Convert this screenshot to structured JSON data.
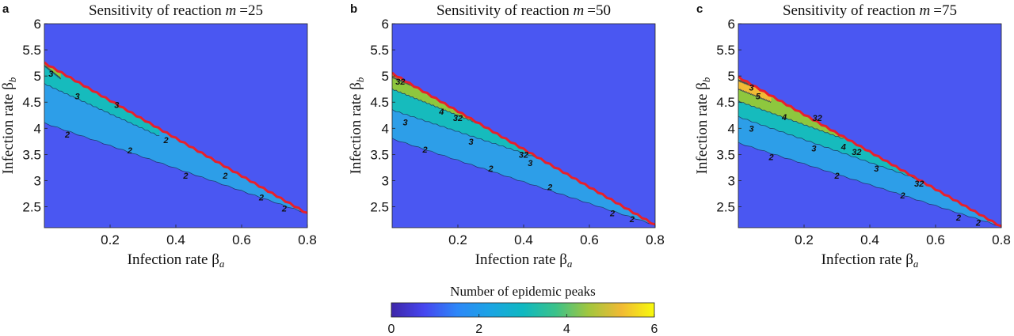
{
  "chart_data": [
    {
      "panel_letter": "a",
      "type": "heatmap",
      "title": "Sensitivity of reaction m =25",
      "title_text": "Sensitivity of reaction ",
      "title_var": "m",
      "title_value": "=25",
      "xlabel": "Infection rate β",
      "xlabel_text": "Infection rate β",
      "xlabel_sub": "a",
      "ylabel": "Infection rate β",
      "ylabel_text": "Infection rate β",
      "ylabel_sub": "b",
      "xlim": [
        0.0,
        0.8
      ],
      "ylim": [
        2.1,
        6.0
      ],
      "xticks": [
        "0.2",
        "0.4",
        "0.6",
        "0.8"
      ],
      "xtick_values": [
        0.2,
        0.4,
        0.6,
        0.8
      ],
      "yticks": [
        "2.5",
        "3",
        "3.5",
        "4",
        "4.5",
        "5",
        "5.5",
        "6"
      ],
      "ytick_values": [
        2.5,
        3.0,
        3.5,
        4.0,
        4.5,
        5.0,
        5.5,
        6.0
      ],
      "boundary_line": [
        [
          0.0,
          5.25
        ],
        [
          0.8,
          2.37
        ]
      ],
      "region_colors": {
        "1": "#4a57f2",
        "2": "#2d9ee8",
        "3": "#16bbbd",
        "4": "#8ec73e",
        "5": "#f1ba34",
        "6": "#f8f51d"
      },
      "contour_lines": [
        {
          "level": 2,
          "points": [
            [
              0.0,
              4.1
            ],
            [
              0.8,
              2.37
            ]
          ]
        },
        {
          "level": 3,
          "points": [
            [
              0.0,
              4.85
            ],
            [
              0.35,
              3.85
            ]
          ]
        },
        {
          "level": 4,
          "points": [
            [
              0.0,
              5.2
            ],
            [
              0.05,
              4.95
            ]
          ]
        }
      ],
      "contour_labels": [
        {
          "text": "3",
          "x": 0.02,
          "y": 5.05
        },
        {
          "text": "3",
          "x": 0.1,
          "y": 4.62
        },
        {
          "text": "3",
          "x": 0.22,
          "y": 4.45
        },
        {
          "text": "2",
          "x": 0.07,
          "y": 3.88
        },
        {
          "text": "2",
          "x": 0.26,
          "y": 3.58
        },
        {
          "text": "2",
          "x": 0.37,
          "y": 3.78
        },
        {
          "text": "2",
          "x": 0.43,
          "y": 3.1
        },
        {
          "text": "2",
          "x": 0.55,
          "y": 3.1
        },
        {
          "text": "2",
          "x": 0.66,
          "y": 2.68
        },
        {
          "text": "2",
          "x": 0.73,
          "y": 2.47
        }
      ]
    },
    {
      "panel_letter": "b",
      "type": "heatmap",
      "title": "Sensitivity of reaction m =50",
      "title_text": "Sensitivity of reaction ",
      "title_var": "m",
      "title_value": "=50",
      "xlabel": "Infection rate β",
      "xlabel_text": "Infection rate β",
      "xlabel_sub": "a",
      "ylabel": "Infection rate β",
      "ylabel_text": "Infection rate β",
      "ylabel_sub": "b",
      "xlim": [
        0.0,
        0.8
      ],
      "ylim": [
        2.1,
        6.0
      ],
      "xticks": [
        "0.2",
        "0.4",
        "0.6",
        "0.8"
      ],
      "xtick_values": [
        0.2,
        0.4,
        0.6,
        0.8
      ],
      "yticks": [
        "2.5",
        "3",
        "3.5",
        "4",
        "4.5",
        "5",
        "5.5",
        "6"
      ],
      "ytick_values": [
        2.5,
        3.0,
        3.5,
        4.0,
        4.5,
        5.0,
        5.5,
        6.0
      ],
      "boundary_line": [
        [
          0.0,
          5.05
        ],
        [
          0.8,
          2.15
        ]
      ],
      "region_colors": {
        "1": "#4a57f2",
        "2": "#2d9ee8",
        "3": "#16bbbd",
        "4": "#8ec73e",
        "5": "#f1ba34",
        "6": "#f8f51d"
      },
      "contour_lines": [
        {
          "level": 2,
          "points": [
            [
              0.0,
              3.8
            ],
            [
              0.8,
              2.15
            ]
          ]
        },
        {
          "level": 3,
          "points": [
            [
              0.0,
              4.35
            ],
            [
              0.45,
              3.42
            ]
          ]
        },
        {
          "level": 4,
          "points": [
            [
              0.0,
              4.75
            ],
            [
              0.25,
              4.12
            ]
          ]
        },
        {
          "level": 5,
          "points": [
            [
              0.0,
              4.98
            ],
            [
              0.06,
              4.82
            ]
          ]
        }
      ],
      "contour_labels": [
        {
          "text": "32",
          "x": 0.025,
          "y": 4.9
        },
        {
          "text": "4",
          "x": 0.15,
          "y": 4.32
        },
        {
          "text": "32",
          "x": 0.2,
          "y": 4.2
        },
        {
          "text": "3",
          "x": 0.04,
          "y": 4.12
        },
        {
          "text": "3",
          "x": 0.24,
          "y": 3.75
        },
        {
          "text": "32",
          "x": 0.4,
          "y": 3.5
        },
        {
          "text": "3",
          "x": 0.42,
          "y": 3.34
        },
        {
          "text": "2",
          "x": 0.1,
          "y": 3.6
        },
        {
          "text": "2",
          "x": 0.3,
          "y": 3.23
        },
        {
          "text": "2",
          "x": 0.48,
          "y": 2.88
        },
        {
          "text": "2",
          "x": 0.67,
          "y": 2.38
        },
        {
          "text": "2",
          "x": 0.73,
          "y": 2.27
        }
      ]
    },
    {
      "panel_letter": "c",
      "type": "heatmap",
      "title": "Sensitivity of reaction m =75",
      "title_text": "Sensitivity of reaction ",
      "title_var": "m",
      "title_value": "=75",
      "xlabel": "Infection rate β",
      "xlabel_text": "Infection rate β",
      "xlabel_sub": "a",
      "ylabel": "Infection rate β",
      "ylabel_text": "Infection rate β",
      "ylabel_sub": "b",
      "xlim": [
        0.0,
        0.8
      ],
      "ylim": [
        2.1,
        6.0
      ],
      "xticks": [
        "0.2",
        "0.4",
        "0.6",
        "0.8"
      ],
      "xtick_values": [
        0.2,
        0.4,
        0.6,
        0.8
      ],
      "yticks": [
        "2.5",
        "3",
        "3.5",
        "4",
        "4.5",
        "5",
        "5.5",
        "6"
      ],
      "ytick_values": [
        2.5,
        3.0,
        3.5,
        4.0,
        4.5,
        5.0,
        5.5,
        6.0
      ],
      "boundary_line": [
        [
          0.0,
          4.98
        ],
        [
          0.8,
          2.12
        ]
      ],
      "region_colors": {
        "1": "#4a57f2",
        "2": "#2d9ee8",
        "3": "#16bbbd",
        "4": "#8ec73e",
        "5": "#f1ba34",
        "6": "#f8f51d"
      },
      "contour_lines": [
        {
          "level": 2,
          "points": [
            [
              0.0,
              3.72
            ],
            [
              0.8,
              2.12
            ]
          ]
        },
        {
          "level": 3,
          "points": [
            [
              0.0,
              4.22
            ],
            [
              0.55,
              3.02
            ]
          ]
        },
        {
          "level": 4,
          "points": [
            [
              0.0,
              4.52
            ],
            [
              0.32,
              3.8
            ]
          ]
        },
        {
          "level": 5,
          "points": [
            [
              0.0,
              4.75
            ],
            [
              0.1,
              4.5
            ]
          ]
        },
        {
          "level": 6,
          "points": [
            [
              0.0,
              4.92
            ],
            [
              0.04,
              4.82
            ]
          ]
        }
      ],
      "contour_labels": [
        {
          "text": "3",
          "x": 0.04,
          "y": 4.78
        },
        {
          "text": "5",
          "x": 0.06,
          "y": 4.62
        },
        {
          "text": "4",
          "x": 0.14,
          "y": 4.22
        },
        {
          "text": "32",
          "x": 0.24,
          "y": 4.2
        },
        {
          "text": "3",
          "x": 0.04,
          "y": 4.0
        },
        {
          "text": "3",
          "x": 0.23,
          "y": 3.62
        },
        {
          "text": "4",
          "x": 0.32,
          "y": 3.65
        },
        {
          "text": "32",
          "x": 0.36,
          "y": 3.55
        },
        {
          "text": "3",
          "x": 0.42,
          "y": 3.23
        },
        {
          "text": "32",
          "x": 0.55,
          "y": 2.95
        },
        {
          "text": "2",
          "x": 0.1,
          "y": 3.45
        },
        {
          "text": "2",
          "x": 0.3,
          "y": 3.1
        },
        {
          "text": "2",
          "x": 0.5,
          "y": 2.72
        },
        {
          "text": "2",
          "x": 0.67,
          "y": 2.3
        },
        {
          "text": "2",
          "x": 0.73,
          "y": 2.2
        }
      ]
    }
  ],
  "colorbar": {
    "title": "Number of epidemic peaks",
    "range": [
      0,
      6
    ],
    "ticks": [
      "0",
      "2",
      "4",
      "6"
    ],
    "tick_values": [
      0,
      2,
      4,
      6
    ],
    "colors": [
      "#3e26a8",
      "#4646f0",
      "#2d87f8",
      "#1ba4e4",
      "#0fb8c1",
      "#3bc28a",
      "#a2c63e",
      "#f1ba34",
      "#f8fa0d"
    ]
  }
}
